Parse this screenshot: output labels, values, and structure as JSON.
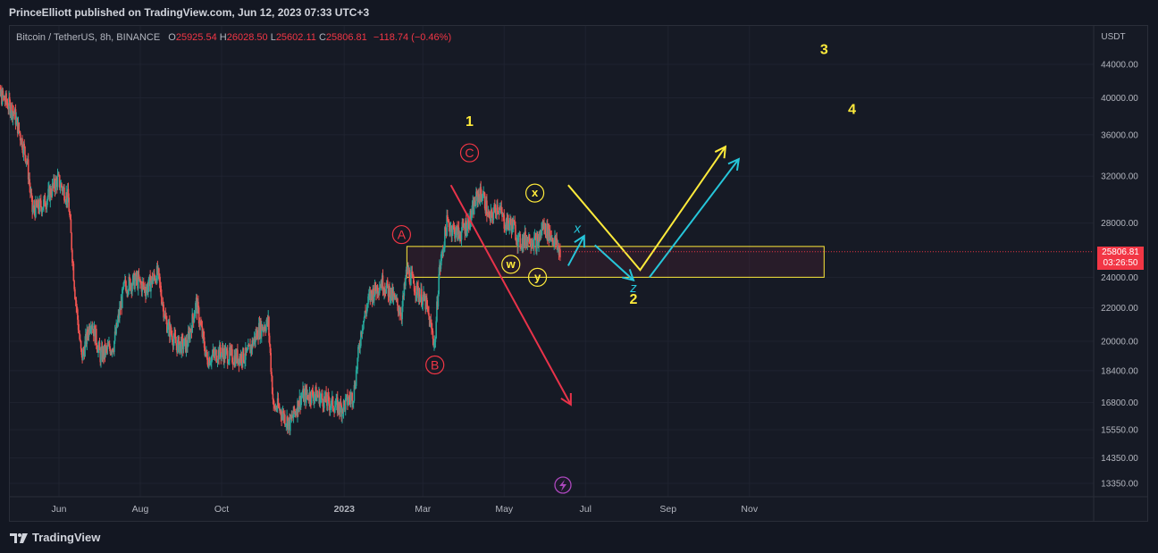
{
  "header": {
    "published": "PrinceElliott published on TradingView.com, Jun 12, 2023 07:33 UTC+3"
  },
  "legend": {
    "symbol": "Bitcoin / TetherUS, 8h, BINANCE",
    "o_label": "O",
    "o": "25925.54",
    "h_label": "H",
    "h": "26028.50",
    "l_label": "L",
    "l": "25602.11",
    "c_label": "C",
    "c": "25806.81",
    "change": "−118.74 (−0.46%)"
  },
  "price_tag": {
    "price": "25806.81",
    "countdown": "03:26:50"
  },
  "footer": {
    "brand": "TradingView"
  },
  "colors": {
    "up": "#26a69a",
    "down": "#ef5350",
    "yellow": "#ffeb3b",
    "cyan": "#26c6da",
    "red": "#f23645",
    "purple": "#ab47bc"
  },
  "chart_data": {
    "type": "candlestick",
    "currency": "USDT",
    "y_scale": "log",
    "ylim": [
      12500,
      47500
    ],
    "y_ticks": [
      "44000.00",
      "40000.00",
      "36000.00",
      "32000.00",
      "28000.00",
      "24000.00",
      "22000.00",
      "20000.00",
      "18400.00",
      "16800.00",
      "15550.00",
      "14350.00",
      "13350.00"
    ],
    "x_ticks": [
      "Jun",
      "Aug",
      "Oct",
      "2023",
      "Mar",
      "May",
      "Jul",
      "Sep",
      "Nov"
    ],
    "x_tick_dates": [
      "2022-06-01",
      "2022-08-01",
      "2022-10-01",
      "2023-01-01",
      "2023-03-01",
      "2023-05-01",
      "2023-07-01",
      "2023-09-01",
      "2023-11-01"
    ],
    "xlim": [
      "2022-04-12",
      "2023-12-30"
    ],
    "price_path": [
      [
        "2022-04-12",
        40800
      ],
      [
        "2022-04-20",
        40000
      ],
      [
        "2022-04-28",
        38500
      ],
      [
        "2022-05-08",
        33500
      ],
      [
        "2022-05-12",
        29000
      ],
      [
        "2022-05-20",
        29500
      ],
      [
        "2022-05-31",
        31700
      ],
      [
        "2022-06-08",
        30000
      ],
      [
        "2022-06-13",
        23000
      ],
      [
        "2022-06-18",
        19000
      ],
      [
        "2022-06-25",
        21300
      ],
      [
        "2022-07-02",
        19200
      ],
      [
        "2022-07-12",
        19800
      ],
      [
        "2022-07-20",
        23400
      ],
      [
        "2022-07-29",
        23800
      ],
      [
        "2022-08-05",
        23200
      ],
      [
        "2022-08-14",
        24300
      ],
      [
        "2022-08-20",
        21200
      ],
      [
        "2022-08-28",
        19800
      ],
      [
        "2022-09-05",
        19800
      ],
      [
        "2022-09-12",
        22300
      ],
      [
        "2022-09-20",
        19000
      ],
      [
        "2022-09-30",
        19400
      ],
      [
        "2022-10-10",
        19100
      ],
      [
        "2022-10-20",
        19200
      ],
      [
        "2022-10-29",
        20700
      ],
      [
        "2022-11-05",
        21100
      ],
      [
        "2022-11-09",
        16500
      ],
      [
        "2022-11-12",
        16600
      ],
      [
        "2022-11-21",
        15800
      ],
      [
        "2022-11-30",
        17100
      ],
      [
        "2022-12-10",
        17200
      ],
      [
        "2022-12-20",
        16800
      ],
      [
        "2022-12-30",
        16550
      ],
      [
        "2023-01-08",
        17200
      ],
      [
        "2023-01-14",
        20800
      ],
      [
        "2023-01-20",
        22700
      ],
      [
        "2023-01-29",
        23700
      ],
      [
        "2023-02-05",
        22900
      ],
      [
        "2023-02-13",
        21700
      ],
      [
        "2023-02-17",
        24500
      ],
      [
        "2023-02-24",
        23200
      ],
      [
        "2023-03-03",
        22300
      ],
      [
        "2023-03-10",
        19800
      ],
      [
        "2023-03-13",
        24200
      ],
      [
        "2023-03-19",
        28000
      ],
      [
        "2023-03-28",
        27100
      ],
      [
        "2023-04-05",
        28200
      ],
      [
        "2023-04-11",
        30300
      ],
      [
        "2023-04-15",
        30400
      ],
      [
        "2023-04-20",
        28200
      ],
      [
        "2023-04-26",
        29500
      ],
      [
        "2023-05-01",
        28100
      ],
      [
        "2023-05-08",
        27800
      ],
      [
        "2023-05-12",
        26500
      ],
      [
        "2023-05-20",
        26900
      ],
      [
        "2023-05-26",
        26400
      ],
      [
        "2023-05-30",
        27800
      ],
      [
        "2023-06-06",
        26900
      ],
      [
        "2023-06-12",
        25806.81
      ]
    ],
    "zone": {
      "from": "2023-02-17",
      "to": "2023-12-27",
      "price_low": 24000,
      "price_high": 26200
    },
    "wave_labels": [
      {
        "text": "1",
        "date": "2023-04-05",
        "price": 37500,
        "style": "yellow"
      },
      {
        "text": "2",
        "date": "2023-08-06",
        "price": 22600,
        "style": "yellow"
      },
      {
        "text": "3",
        "date": "2023-12-27",
        "price": 46000,
        "style": "yellow"
      },
      {
        "text": "4",
        "date": "2024-01-17",
        "price": 38800,
        "style": "yellow"
      },
      {
        "text": "A",
        "date": "2023-02-13",
        "price": 27100,
        "style": "red-circle"
      },
      {
        "text": "B",
        "date": "2023-03-10",
        "price": 18700,
        "style": "red-circle"
      },
      {
        "text": "C",
        "date": "2023-04-05",
        "price": 34200,
        "style": "red-circle"
      },
      {
        "text": "x",
        "date": "2023-05-24",
        "price": 30500,
        "style": "yellow-circle"
      },
      {
        "text": "w",
        "date": "2023-05-06",
        "price": 24900,
        "style": "yellow-circle"
      },
      {
        "text": "y",
        "date": "2023-05-26",
        "price": 24000,
        "style": "yellow-circle"
      },
      {
        "text": "x",
        "date": "2023-06-25",
        "price": 27600,
        "style": "cyan"
      },
      {
        "text": "z",
        "date": "2023-08-06",
        "price": 23300,
        "style": "cyan"
      }
    ],
    "arrows": [
      {
        "color": "red",
        "points": [
          [
            "2023-03-22",
            31200
          ],
          [
            "2023-06-20",
            16700
          ]
        ],
        "head": true
      },
      {
        "color": "yellow",
        "points": [
          [
            "2023-06-18",
            31200
          ],
          [
            "2023-08-11",
            24500
          ],
          [
            "2023-10-14",
            34800
          ]
        ],
        "head": true
      },
      {
        "color": "cyan",
        "points": [
          [
            "2023-06-18",
            24800
          ],
          [
            "2023-06-30",
            27000
          ]
        ],
        "head": true
      },
      {
        "color": "cyan",
        "points": [
          [
            "2023-07-08",
            26300
          ],
          [
            "2023-08-06",
            23800
          ]
        ],
        "head": true
      },
      {
        "color": "cyan",
        "points": [
          [
            "2023-08-18",
            24000
          ],
          [
            "2023-10-24",
            33600
          ]
        ],
        "head": true
      }
    ]
  }
}
